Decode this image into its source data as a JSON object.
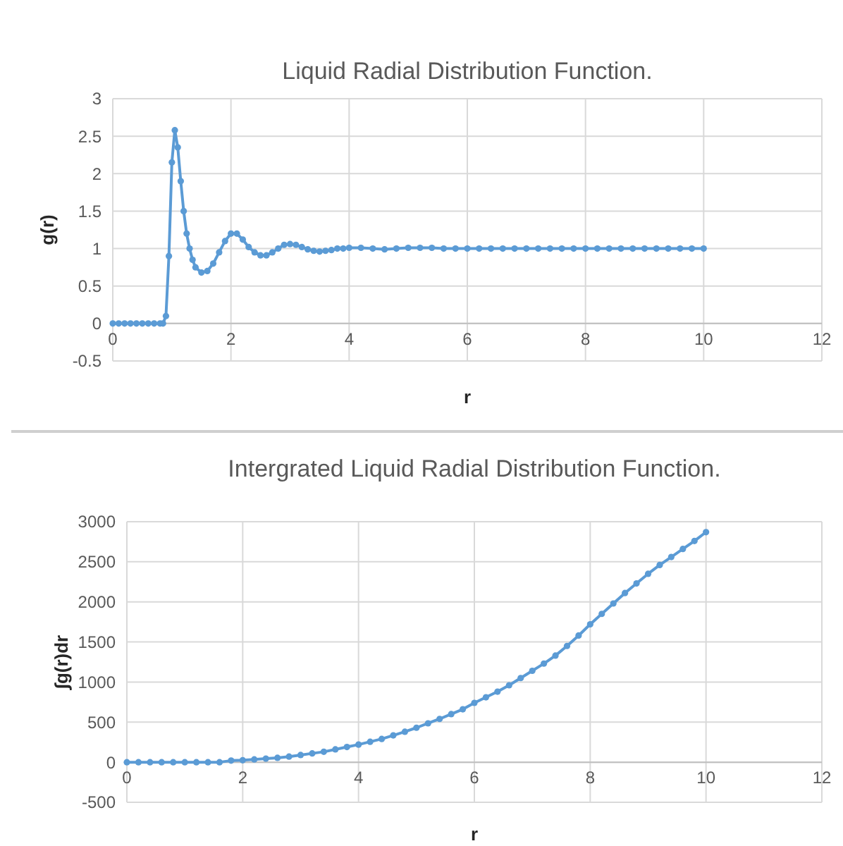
{
  "chart_data": [
    {
      "type": "line",
      "title": "Liquid Radial Distribution Function.",
      "xlabel": "r",
      "ylabel": "g(r)",
      "xlim": [
        0,
        12
      ],
      "xticks": [
        0,
        2,
        4,
        6,
        8,
        10,
        12
      ],
      "ylim": [
        -0.5,
        3
      ],
      "yticks": [
        -0.5,
        0,
        0.5,
        1,
        1.5,
        2,
        2.5,
        3
      ],
      "grid": true,
      "marker": "circle",
      "line_style": "solid",
      "series": [
        {
          "color": "#5b9bd5",
          "x": [
            0,
            0.1,
            0.2,
            0.3,
            0.4,
            0.5,
            0.6,
            0.7,
            0.8,
            0.85,
            0.9,
            0.95,
            1.0,
            1.05,
            1.1,
            1.15,
            1.2,
            1.25,
            1.3,
            1.35,
            1.4,
            1.5,
            1.6,
            1.7,
            1.8,
            1.9,
            2.0,
            2.1,
            2.2,
            2.3,
            2.4,
            2.5,
            2.6,
            2.7,
            2.8,
            2.9,
            3.0,
            3.1,
            3.2,
            3.3,
            3.4,
            3.5,
            3.6,
            3.7,
            3.8,
            3.9,
            4.0,
            4.2,
            4.4,
            4.6,
            4.8,
            5.0,
            5.2,
            5.4,
            5.6,
            5.8,
            6.0,
            6.2,
            6.4,
            6.6,
            6.8,
            7.0,
            7.2,
            7.4,
            7.6,
            7.8,
            8.0,
            8.2,
            8.4,
            8.6,
            8.8,
            9.0,
            9.2,
            9.4,
            9.6,
            9.8,
            10.0
          ],
          "values": [
            0,
            0,
            0,
            0,
            0,
            0,
            0,
            0,
            0,
            0,
            0.1,
            0.9,
            2.15,
            2.58,
            2.35,
            1.9,
            1.5,
            1.2,
            1.0,
            0.85,
            0.75,
            0.68,
            0.7,
            0.8,
            0.95,
            1.1,
            1.2,
            1.2,
            1.12,
            1.02,
            0.95,
            0.91,
            0.91,
            0.95,
            1.0,
            1.05,
            1.06,
            1.05,
            1.02,
            0.99,
            0.97,
            0.96,
            0.97,
            0.98,
            1.0,
            1.0,
            1.01,
            1.01,
            1.0,
            0.99,
            1.0,
            1.01,
            1.01,
            1.01,
            1.0,
            1.0,
            1.0,
            1.0,
            1.0,
            1.0,
            1.0,
            1.0,
            1.0,
            1.0,
            1.0,
            1.0,
            1.0,
            1.0,
            1.0,
            1.0,
            1.0,
            1.0,
            1.0,
            1.0,
            1.0,
            1.0,
            1.0
          ]
        }
      ]
    },
    {
      "type": "line",
      "title": "Intergrated Liquid Radial Distribution Function.",
      "xlabel": "r",
      "ylabel": "∫g(r)dr",
      "xlim": [
        0,
        12
      ],
      "xticks": [
        0,
        2,
        4,
        6,
        8,
        10,
        12
      ],
      "ylim": [
        -500,
        3000
      ],
      "yticks": [
        -500,
        0,
        500,
        1000,
        1500,
        2000,
        2500,
        3000
      ],
      "grid": true,
      "marker": "circle",
      "line_style": "solid",
      "series": [
        {
          "color": "#5b9bd5",
          "x": [
            0,
            0.2,
            0.4,
            0.6,
            0.8,
            1.0,
            1.2,
            1.4,
            1.6,
            1.8,
            2.0,
            2.2,
            2.4,
            2.6,
            2.8,
            3.0,
            3.2,
            3.4,
            3.6,
            3.8,
            4.0,
            4.2,
            4.4,
            4.6,
            4.8,
            5.0,
            5.2,
            5.4,
            5.6,
            5.8,
            6.0,
            6.2,
            6.4,
            6.6,
            6.8,
            7.0,
            7.2,
            7.4,
            7.6,
            7.8,
            8.0,
            8.2,
            8.4,
            8.6,
            8.8,
            9.0,
            9.2,
            9.4,
            9.6,
            9.8,
            10.0
          ],
          "values": [
            0,
            0,
            0,
            0,
            0,
            0,
            0,
            0,
            0,
            20,
            25,
            35,
            45,
            55,
            70,
            90,
            110,
            130,
            160,
            190,
            220,
            255,
            290,
            335,
            380,
            430,
            485,
            540,
            600,
            660,
            740,
            810,
            880,
            960,
            1050,
            1140,
            1230,
            1330,
            1450,
            1580,
            1720,
            1850,
            1980,
            2110,
            2230,
            2350,
            2460,
            2560,
            2660,
            2760,
            2870
          ]
        }
      ]
    }
  ]
}
